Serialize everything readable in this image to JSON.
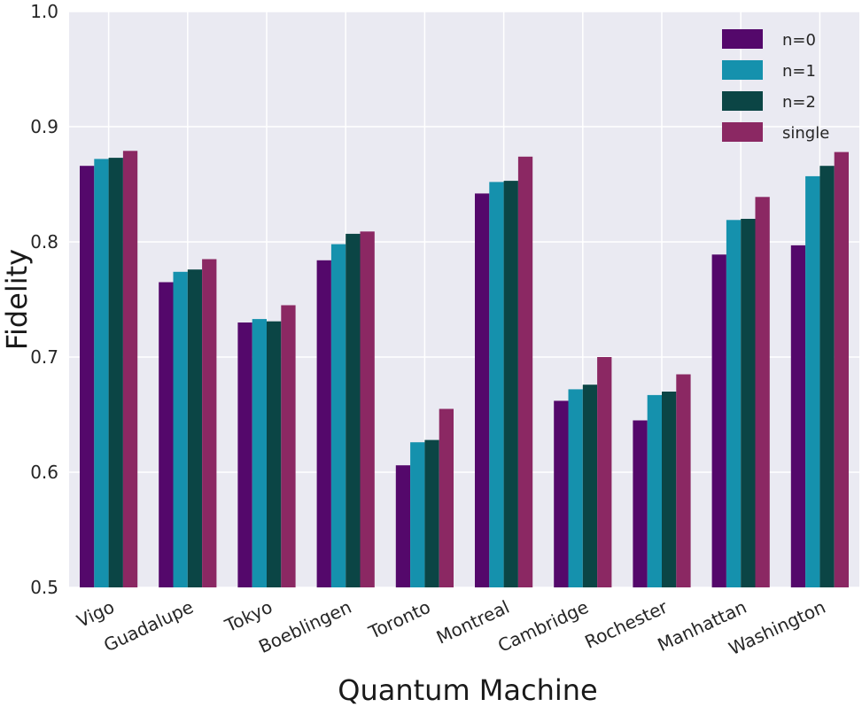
{
  "chart_data": {
    "type": "bar",
    "title": "",
    "xlabel": "Quantum Machine",
    "ylabel": "Fidelity",
    "ylim": [
      0.5,
      1.0
    ],
    "yticks": [
      "0.5",
      "0.6",
      "0.7",
      "0.8",
      "0.9",
      "1.0"
    ],
    "grid": true,
    "legend_position": "top-right",
    "categories": [
      "Vigo",
      "Guadalupe",
      "Tokyo",
      "Boeblingen",
      "Toronto",
      "Montreal",
      "Cambridge",
      "Rochester",
      "Manhattan",
      "Washington"
    ],
    "series": [
      {
        "name": "n=0",
        "color": "#54086b",
        "values": [
          0.866,
          0.765,
          0.73,
          0.784,
          0.606,
          0.842,
          0.662,
          0.645,
          0.789,
          0.797
        ]
      },
      {
        "name": "n=1",
        "color": "#1591ad",
        "values": [
          0.872,
          0.774,
          0.733,
          0.798,
          0.626,
          0.852,
          0.672,
          0.667,
          0.819,
          0.857
        ]
      },
      {
        "name": "n=2",
        "color": "#0b4545",
        "values": [
          0.873,
          0.776,
          0.731,
          0.807,
          0.628,
          0.853,
          0.676,
          0.67,
          0.82,
          0.866
        ]
      },
      {
        "name": "single",
        "color": "#8b2863",
        "values": [
          0.879,
          0.785,
          0.745,
          0.809,
          0.655,
          0.874,
          0.7,
          0.685,
          0.839,
          0.878
        ]
      }
    ]
  }
}
